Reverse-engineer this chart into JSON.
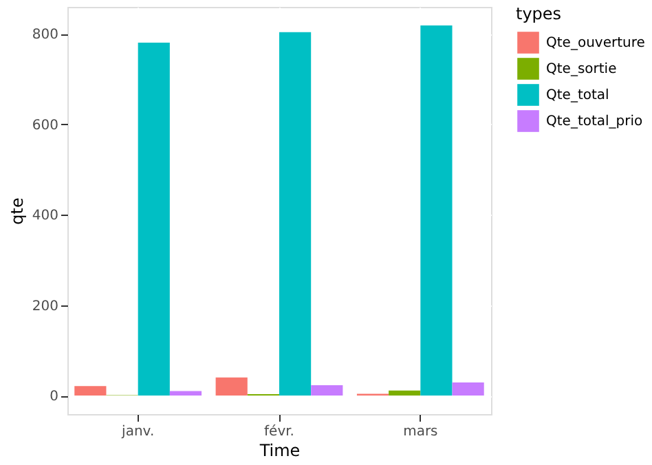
{
  "chart_data": {
    "type": "bar",
    "xlabel": "Time",
    "ylabel": "qte",
    "legend_title": "types",
    "categories": [
      "janv.",
      "févr.",
      "mars"
    ],
    "series": [
      {
        "name": "Qte_ouverture",
        "color": "#f8766d",
        "values": [
          21,
          40,
          4
        ]
      },
      {
        "name": "Qte_sortie",
        "color": "#7cae00",
        "values": [
          1,
          3,
          11
        ]
      },
      {
        "name": "Qte_total",
        "color": "#00bfc4",
        "values": [
          781,
          804,
          819
        ]
      },
      {
        "name": "Qte_total_prio",
        "color": "#c77cff",
        "values": [
          10,
          23,
          29
        ]
      }
    ],
    "ylim": [
      -41,
      860
    ],
    "yticks": [
      0,
      200,
      400,
      600,
      800
    ],
    "grid": true,
    "legend": "right"
  }
}
